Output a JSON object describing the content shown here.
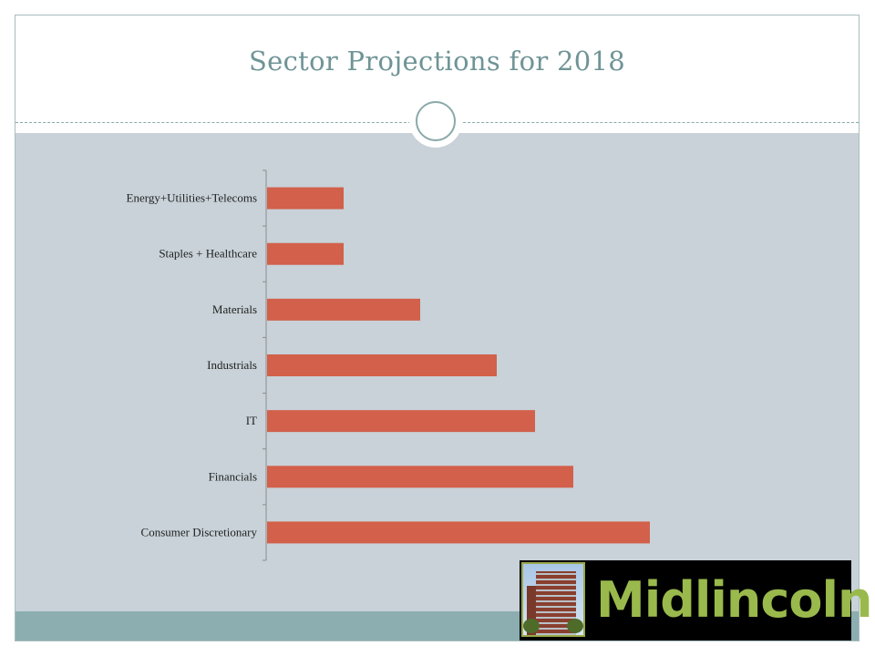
{
  "slide": {
    "title": "Sector Projections for 2018"
  },
  "logo": {
    "text": "Midlincoln"
  },
  "colors": {
    "bar": "#d2604a",
    "axis": "#8c8c8c",
    "content_band": "#c8d2d8",
    "bottom_band": "#8caeb0",
    "title": "#6f9496",
    "logo_text": "#9ab94c"
  },
  "chart_data": {
    "type": "bar",
    "orientation": "horizontal",
    "title": "",
    "xlabel": "",
    "ylabel": "",
    "categories": [
      "Energy+Utilities+Telecoms",
      "Staples + Healthcare",
      "Materials",
      "Industrials",
      "IT",
      "Financials",
      "Consumer Discretionary"
    ],
    "values": [
      2,
      2,
      4,
      6,
      7,
      8,
      10
    ],
    "xlim": [
      0,
      10
    ],
    "grid": false,
    "legend": "none",
    "value_labels_shown": false
  }
}
